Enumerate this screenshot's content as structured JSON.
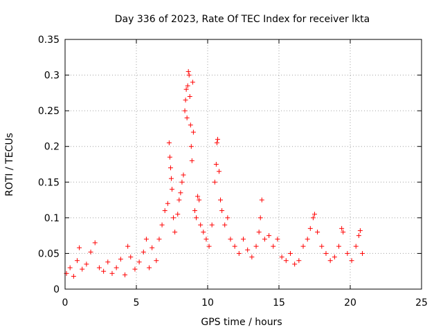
{
  "chart_data": {
    "type": "scatter",
    "title": "Day 336 of 2023, Rate Of TEC Index for receiver lkta",
    "xlabel": "GPS time / hours",
    "ylabel": "ROTI / TECUs",
    "xlim": [
      0,
      25
    ],
    "ylim": [
      0,
      0.35
    ],
    "x_ticks": [
      0,
      5,
      10,
      15,
      20,
      25
    ],
    "x_tick_labels": [
      "0",
      "5",
      "10",
      "15",
      "20",
      "25"
    ],
    "y_ticks": [
      0,
      0.05,
      0.1,
      0.15,
      0.2,
      0.25,
      0.3,
      0.35
    ],
    "y_tick_labels": [
      "0",
      "0.05",
      "0.1",
      "0.15",
      "0.2",
      "0.25",
      "0.3",
      "0.35"
    ],
    "grid": true,
    "legend": "none",
    "marker": "plus",
    "marker_color": "#ff0000",
    "series": [
      {
        "values": [
          [
            0.1,
            0.022
          ],
          [
            0.35,
            0.03
          ],
          [
            0.6,
            0.018
          ],
          [
            0.85,
            0.04
          ],
          [
            1.0,
            0.058
          ],
          [
            1.2,
            0.028
          ],
          [
            1.5,
            0.035
          ],
          [
            1.8,
            0.052
          ],
          [
            2.1,
            0.065
          ],
          [
            2.4,
            0.03
          ],
          [
            2.7,
            0.025
          ],
          [
            3.0,
            0.038
          ],
          [
            3.3,
            0.022
          ],
          [
            3.6,
            0.03
          ],
          [
            3.9,
            0.042
          ],
          [
            4.2,
            0.02
          ],
          [
            4.4,
            0.06
          ],
          [
            4.6,
            0.045
          ],
          [
            4.9,
            0.028
          ],
          [
            5.2,
            0.038
          ],
          [
            5.5,
            0.052
          ],
          [
            5.7,
            0.07
          ],
          [
            5.9,
            0.03
          ],
          [
            6.1,
            0.058
          ],
          [
            6.4,
            0.04
          ],
          [
            6.6,
            0.07
          ],
          [
            6.8,
            0.09
          ],
          [
            7.0,
            0.11
          ],
          [
            7.2,
            0.12
          ],
          [
            7.3,
            0.205
          ],
          [
            7.35,
            0.185
          ],
          [
            7.4,
            0.17
          ],
          [
            7.45,
            0.155
          ],
          [
            7.5,
            0.14
          ],
          [
            7.6,
            0.1
          ],
          [
            7.7,
            0.08
          ],
          [
            7.9,
            0.105
          ],
          [
            8.0,
            0.125
          ],
          [
            8.1,
            0.135
          ],
          [
            8.2,
            0.15
          ],
          [
            8.3,
            0.16
          ],
          [
            8.4,
            0.25
          ],
          [
            8.45,
            0.265
          ],
          [
            8.5,
            0.28
          ],
          [
            8.55,
            0.24
          ],
          [
            8.6,
            0.285
          ],
          [
            8.65,
            0.305
          ],
          [
            8.7,
            0.3
          ],
          [
            8.75,
            0.27
          ],
          [
            8.8,
            0.23
          ],
          [
            8.85,
            0.2
          ],
          [
            8.9,
            0.18
          ],
          [
            8.95,
            0.29
          ],
          [
            9.0,
            0.22
          ],
          [
            9.1,
            0.11
          ],
          [
            9.2,
            0.1
          ],
          [
            9.3,
            0.13
          ],
          [
            9.4,
            0.125
          ],
          [
            9.5,
            0.09
          ],
          [
            9.7,
            0.08
          ],
          [
            9.9,
            0.07
          ],
          [
            10.1,
            0.06
          ],
          [
            10.3,
            0.09
          ],
          [
            10.5,
            0.15
          ],
          [
            10.6,
            0.175
          ],
          [
            10.65,
            0.205
          ],
          [
            10.7,
            0.21
          ],
          [
            10.8,
            0.165
          ],
          [
            10.9,
            0.125
          ],
          [
            11.0,
            0.11
          ],
          [
            11.2,
            0.09
          ],
          [
            11.4,
            0.1
          ],
          [
            11.6,
            0.07
          ],
          [
            11.9,
            0.06
          ],
          [
            12.2,
            0.05
          ],
          [
            12.5,
            0.07
          ],
          [
            12.8,
            0.055
          ],
          [
            13.1,
            0.045
          ],
          [
            13.4,
            0.06
          ],
          [
            13.6,
            0.08
          ],
          [
            13.7,
            0.1
          ],
          [
            13.8,
            0.125
          ],
          [
            14.0,
            0.07
          ],
          [
            14.3,
            0.075
          ],
          [
            14.6,
            0.06
          ],
          [
            14.9,
            0.07
          ],
          [
            15.2,
            0.045
          ],
          [
            15.5,
            0.04
          ],
          [
            15.8,
            0.05
          ],
          [
            16.1,
            0.035
          ],
          [
            16.4,
            0.04
          ],
          [
            16.7,
            0.06
          ],
          [
            17.0,
            0.07
          ],
          [
            17.2,
            0.085
          ],
          [
            17.4,
            0.1
          ],
          [
            17.5,
            0.105
          ],
          [
            17.7,
            0.08
          ],
          [
            18.0,
            0.06
          ],
          [
            18.3,
            0.05
          ],
          [
            18.6,
            0.04
          ],
          [
            18.9,
            0.045
          ],
          [
            19.2,
            0.06
          ],
          [
            19.4,
            0.085
          ],
          [
            19.5,
            0.08
          ],
          [
            19.8,
            0.05
          ],
          [
            20.1,
            0.04
          ],
          [
            20.4,
            0.06
          ],
          [
            20.6,
            0.075
          ],
          [
            20.7,
            0.082
          ],
          [
            20.85,
            0.05
          ]
        ]
      }
    ]
  }
}
